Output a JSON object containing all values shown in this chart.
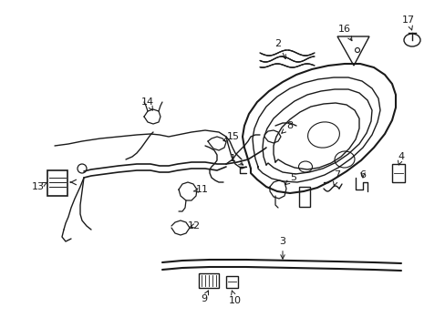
{
  "bg_color": "#ffffff",
  "line_color": "#1a1a1a",
  "figsize": [
    4.89,
    3.6
  ],
  "dpi": 100,
  "xlim": [
    0,
    489
  ],
  "ylim": [
    0,
    360
  ]
}
